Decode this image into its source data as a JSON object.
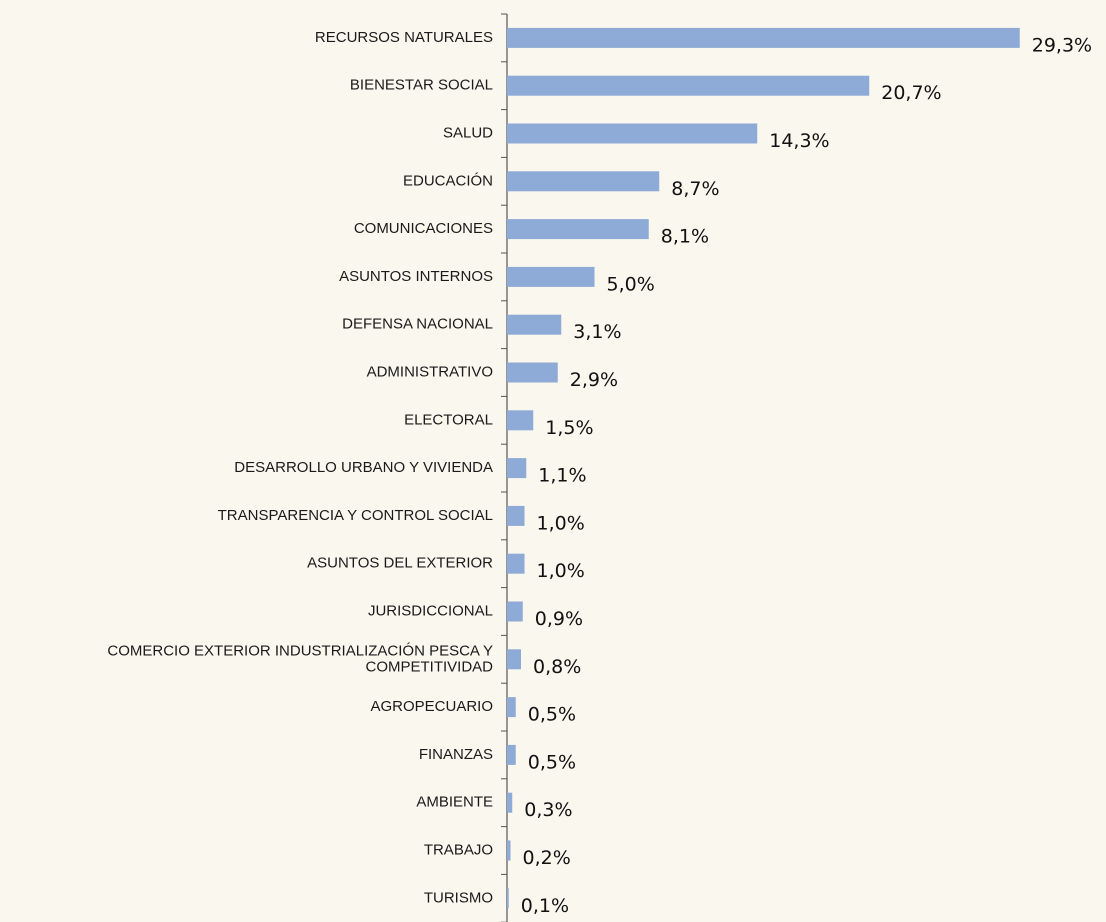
{
  "chart_data": {
    "type": "hbar",
    "categories": [
      "RECURSOS NATURALES",
      "BIENESTAR SOCIAL",
      "SALUD",
      "EDUCACIÓN",
      "COMUNICACIONES",
      "ASUNTOS INTERNOS",
      "DEFENSA NACIONAL",
      "ADMINISTRATIVO",
      "ELECTORAL",
      "DESARROLLO URBANO Y VIVIENDA",
      "TRANSPARENCIA Y CONTROL SOCIAL",
      "ASUNTOS DEL EXTERIOR",
      "JURISDICCIONAL",
      "COMERCIO EXTERIOR INDUSTRIALIZACIÓN PESCA Y\nCOMPETITIVIDAD",
      "AGROPECUARIO",
      "FINANZAS",
      "AMBIENTE",
      "TRABAJO",
      "TURISMO"
    ],
    "values": [
      29.3,
      20.7,
      14.3,
      8.7,
      8.1,
      5.0,
      3.1,
      2.9,
      1.5,
      1.1,
      1.0,
      1.0,
      0.9,
      0.8,
      0.5,
      0.5,
      0.3,
      0.2,
      0.1
    ],
    "value_labels": [
      "29,3%",
      "20,7%",
      "14,3%",
      "8,7%",
      "8,1%",
      "5,0%",
      "3,1%",
      "2,9%",
      "1,5%",
      "1,1%",
      "1,0%",
      "1,0%",
      "0,9%",
      "0,8%",
      "0,5%",
      "0,5%",
      "0,3%",
      "0,2%",
      "0,1%"
    ],
    "color": "#8eaad6",
    "xlim": [
      0,
      30
    ]
  }
}
